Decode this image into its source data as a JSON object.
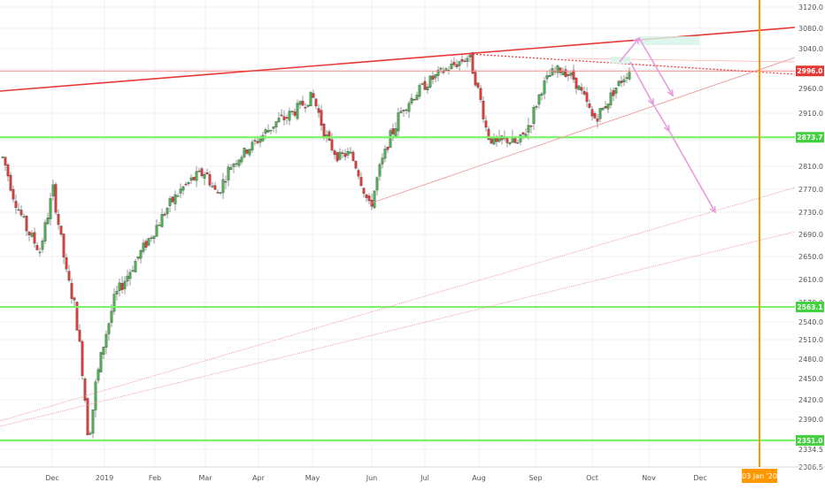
{
  "chart_data": {
    "type": "candlestick",
    "ylim": [
      2306.5,
      3120.0
    ],
    "y_ticks": [
      3120.0,
      3080.0,
      3040.0,
      3000.0,
      2960.0,
      2910.0,
      2870.0,
      2810.0,
      2770.0,
      2730.0,
      2690.0,
      2650.0,
      2610.0,
      2570.0,
      2540.0,
      2510.0,
      2480.0,
      2450.0,
      2420.0,
      2390.0,
      2334.5,
      2306.5
    ],
    "y_tick_labels": [
      "3120.0",
      "3080.0",
      "3040.0",
      "3000.0",
      "2960.0",
      "2910.0",
      "2870.0",
      "2810.0",
      "2770.0",
      "2730.0",
      "2690.0",
      "2650.0",
      "2610.0",
      "2570.0",
      "2540.0",
      "2510.0",
      "2480.0",
      "2450.0",
      "2420.0",
      "2390.0",
      "2334.5",
      "2306.5"
    ],
    "x_axis_labels": [
      "Dec",
      "2019",
      "Feb",
      "Mar",
      "Apr",
      "May",
      "Jun",
      "Jul",
      "Aug",
      "Sep",
      "Oct",
      "Nov",
      "Dec"
    ],
    "x_axis_date_tag": "03 Jan '20",
    "price_tags": [
      {
        "value": "2996.0",
        "color": "#e53935"
      },
      {
        "value": "2873.7",
        "color": "#43d13f"
      },
      {
        "value": "2563.1",
        "color": "#43d13f"
      },
      {
        "value": "2351.0",
        "color": "#43d13f"
      }
    ],
    "horizontal_levels": [
      2873.7,
      2563.1,
      2351.0
    ],
    "resistance_level": 2996.0,
    "colors": {
      "up": "#4caf50",
      "down": "#e53935",
      "support": "#7cf26a",
      "resistance": "#e53935",
      "trendline": "#ef9a9a",
      "projection": "#e59ce0",
      "date_marker": "#ff9800"
    },
    "key_points": [
      {
        "date": "2018-12",
        "price": 2351.0,
        "note": "low"
      },
      {
        "date": "2019-05",
        "price": 2945,
        "note": "peak"
      },
      {
        "date": "2019-06",
        "price": 2735,
        "note": "low"
      },
      {
        "date": "2019-07",
        "price": 3025,
        "note": "peak"
      },
      {
        "date": "2019-08",
        "price": 2822,
        "note": "low"
      },
      {
        "date": "2019-10",
        "price": 2996.0,
        "note": "last"
      }
    ],
    "grid": true,
    "scale": "linear"
  }
}
